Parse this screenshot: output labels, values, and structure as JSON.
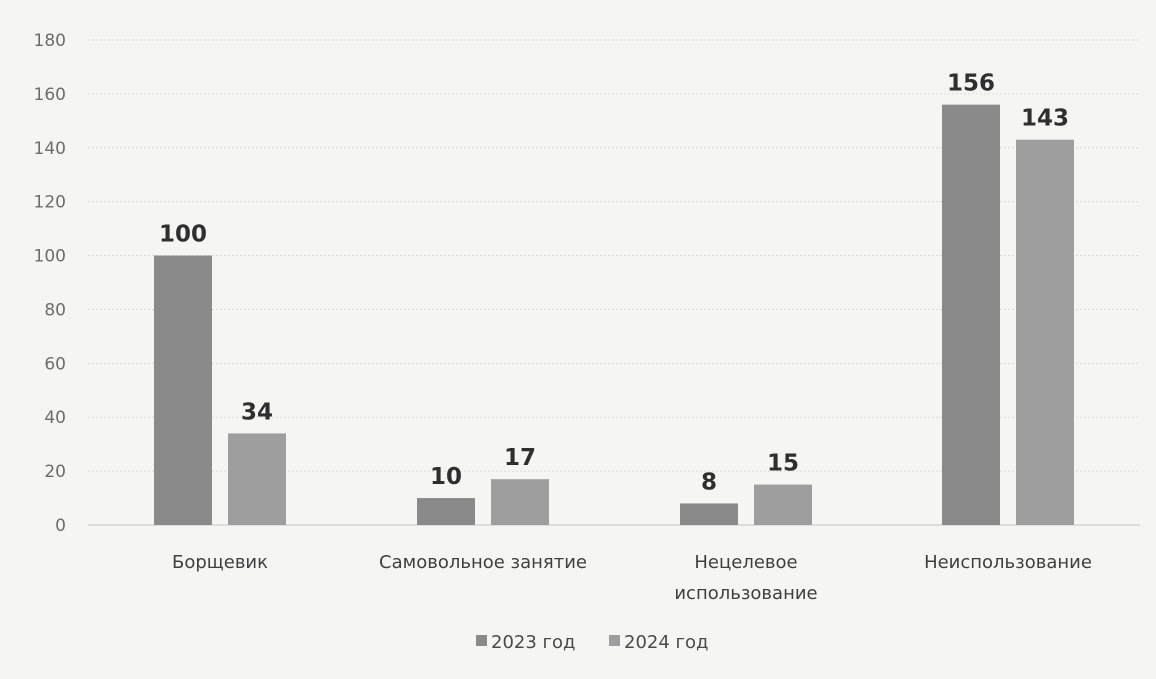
{
  "chart_data": {
    "type": "bar",
    "categories": [
      [
        "Борщевик"
      ],
      [
        "Самовольное занятие"
      ],
      [
        "Нецелевое",
        "использование"
      ],
      [
        "Неиспользование"
      ]
    ],
    "series": [
      {
        "name": "2023 год",
        "values": [
          100,
          10,
          8,
          156
        ],
        "color": "#8a8a8a"
      },
      {
        "name": "2024 год",
        "values": [
          34,
          17,
          15,
          143
        ],
        "color": "#9e9e9e"
      }
    ],
    "ylim": [
      0,
      180
    ],
    "yticks": [
      0,
      20,
      40,
      60,
      80,
      100,
      120,
      140,
      160,
      180
    ],
    "grid": true,
    "legend_position": "bottom"
  }
}
